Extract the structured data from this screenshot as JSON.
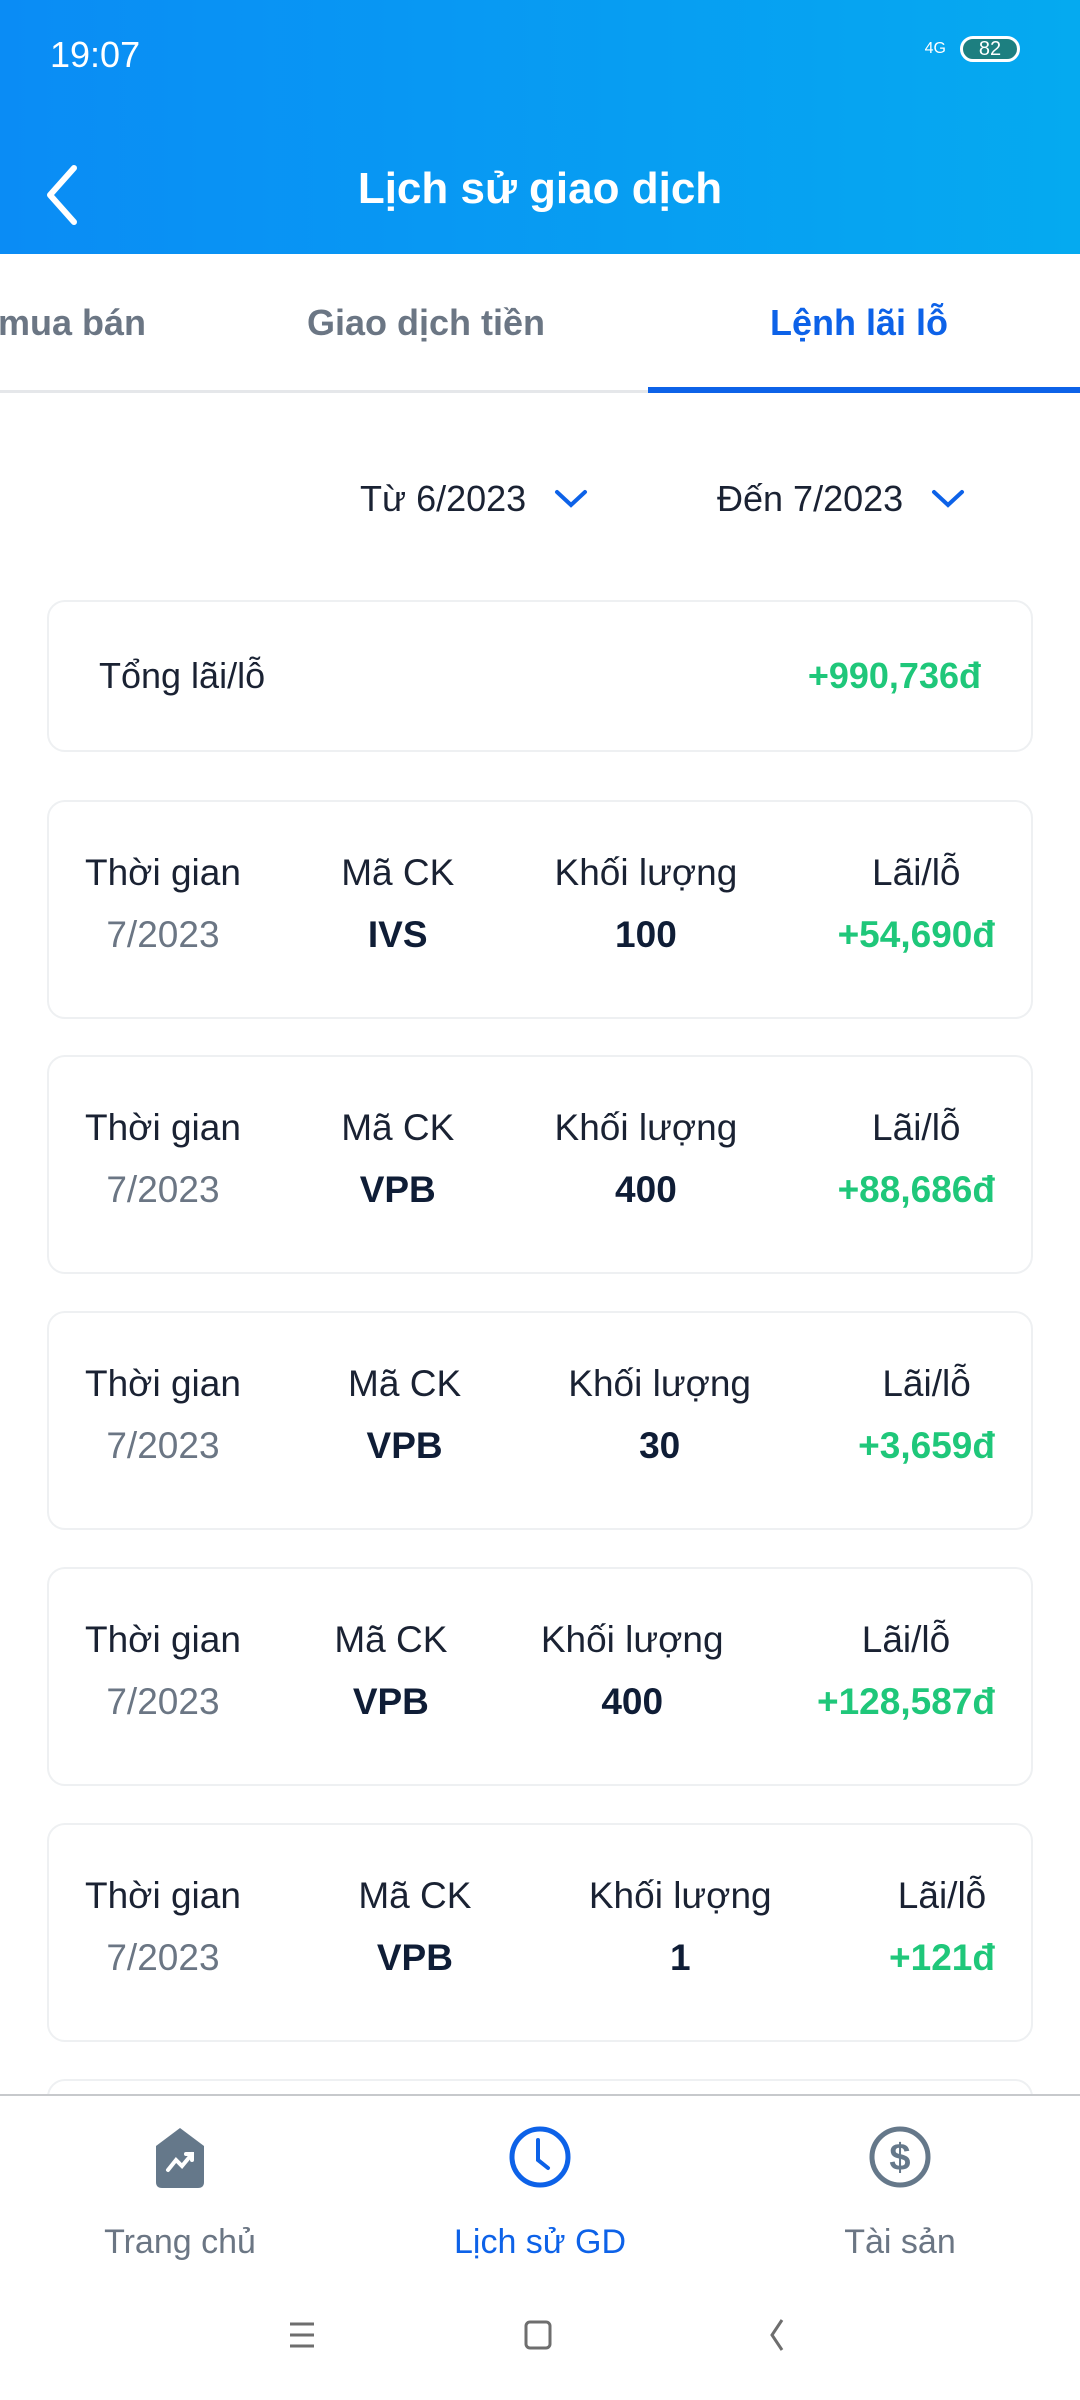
{
  "status_bar": {
    "time": "19:07",
    "network": "4G",
    "battery": "82"
  },
  "header": {
    "title": "Lịch sử giao dịch"
  },
  "tabs": [
    {
      "label": "mua bán"
    },
    {
      "label": "Giao dịch tiền"
    },
    {
      "label": "Lệnh lãi lỗ",
      "active": true
    }
  ],
  "filters": {
    "from": "Từ 6/2023",
    "to": "Đến 7/2023"
  },
  "summary": {
    "label": "Tổng lãi/lỗ",
    "value": "+990,736đ"
  },
  "columns": {
    "time": "Thời gian",
    "symbol": "Mã CK",
    "volume": "Khối lượng",
    "pnl": "Lãi/lỗ"
  },
  "rows": [
    {
      "time": "7/2023",
      "symbol": "IVS",
      "volume": "100",
      "pnl": "+54,690đ"
    },
    {
      "time": "7/2023",
      "symbol": "VPB",
      "volume": "400",
      "pnl": "+88,686đ"
    },
    {
      "time": "7/2023",
      "symbol": "VPB",
      "volume": "30",
      "pnl": "+3,659đ"
    },
    {
      "time": "7/2023",
      "symbol": "VPB",
      "volume": "400",
      "pnl": "+128,587đ"
    },
    {
      "time": "7/2023",
      "symbol": "VPB",
      "volume": "1",
      "pnl": "+121đ"
    }
  ],
  "bottom_nav": [
    {
      "label": "Trang chủ",
      "icon": "home-chart-icon"
    },
    {
      "label": "Lịch sử GD",
      "icon": "clock-icon",
      "active": true
    },
    {
      "label": "Tài sản",
      "icon": "dollar-icon"
    }
  ],
  "colors": {
    "accent": "#0d62e8",
    "profit": "#1fc77a",
    "header_start": "#0a8cf5",
    "header_end": "#05aaf0"
  }
}
